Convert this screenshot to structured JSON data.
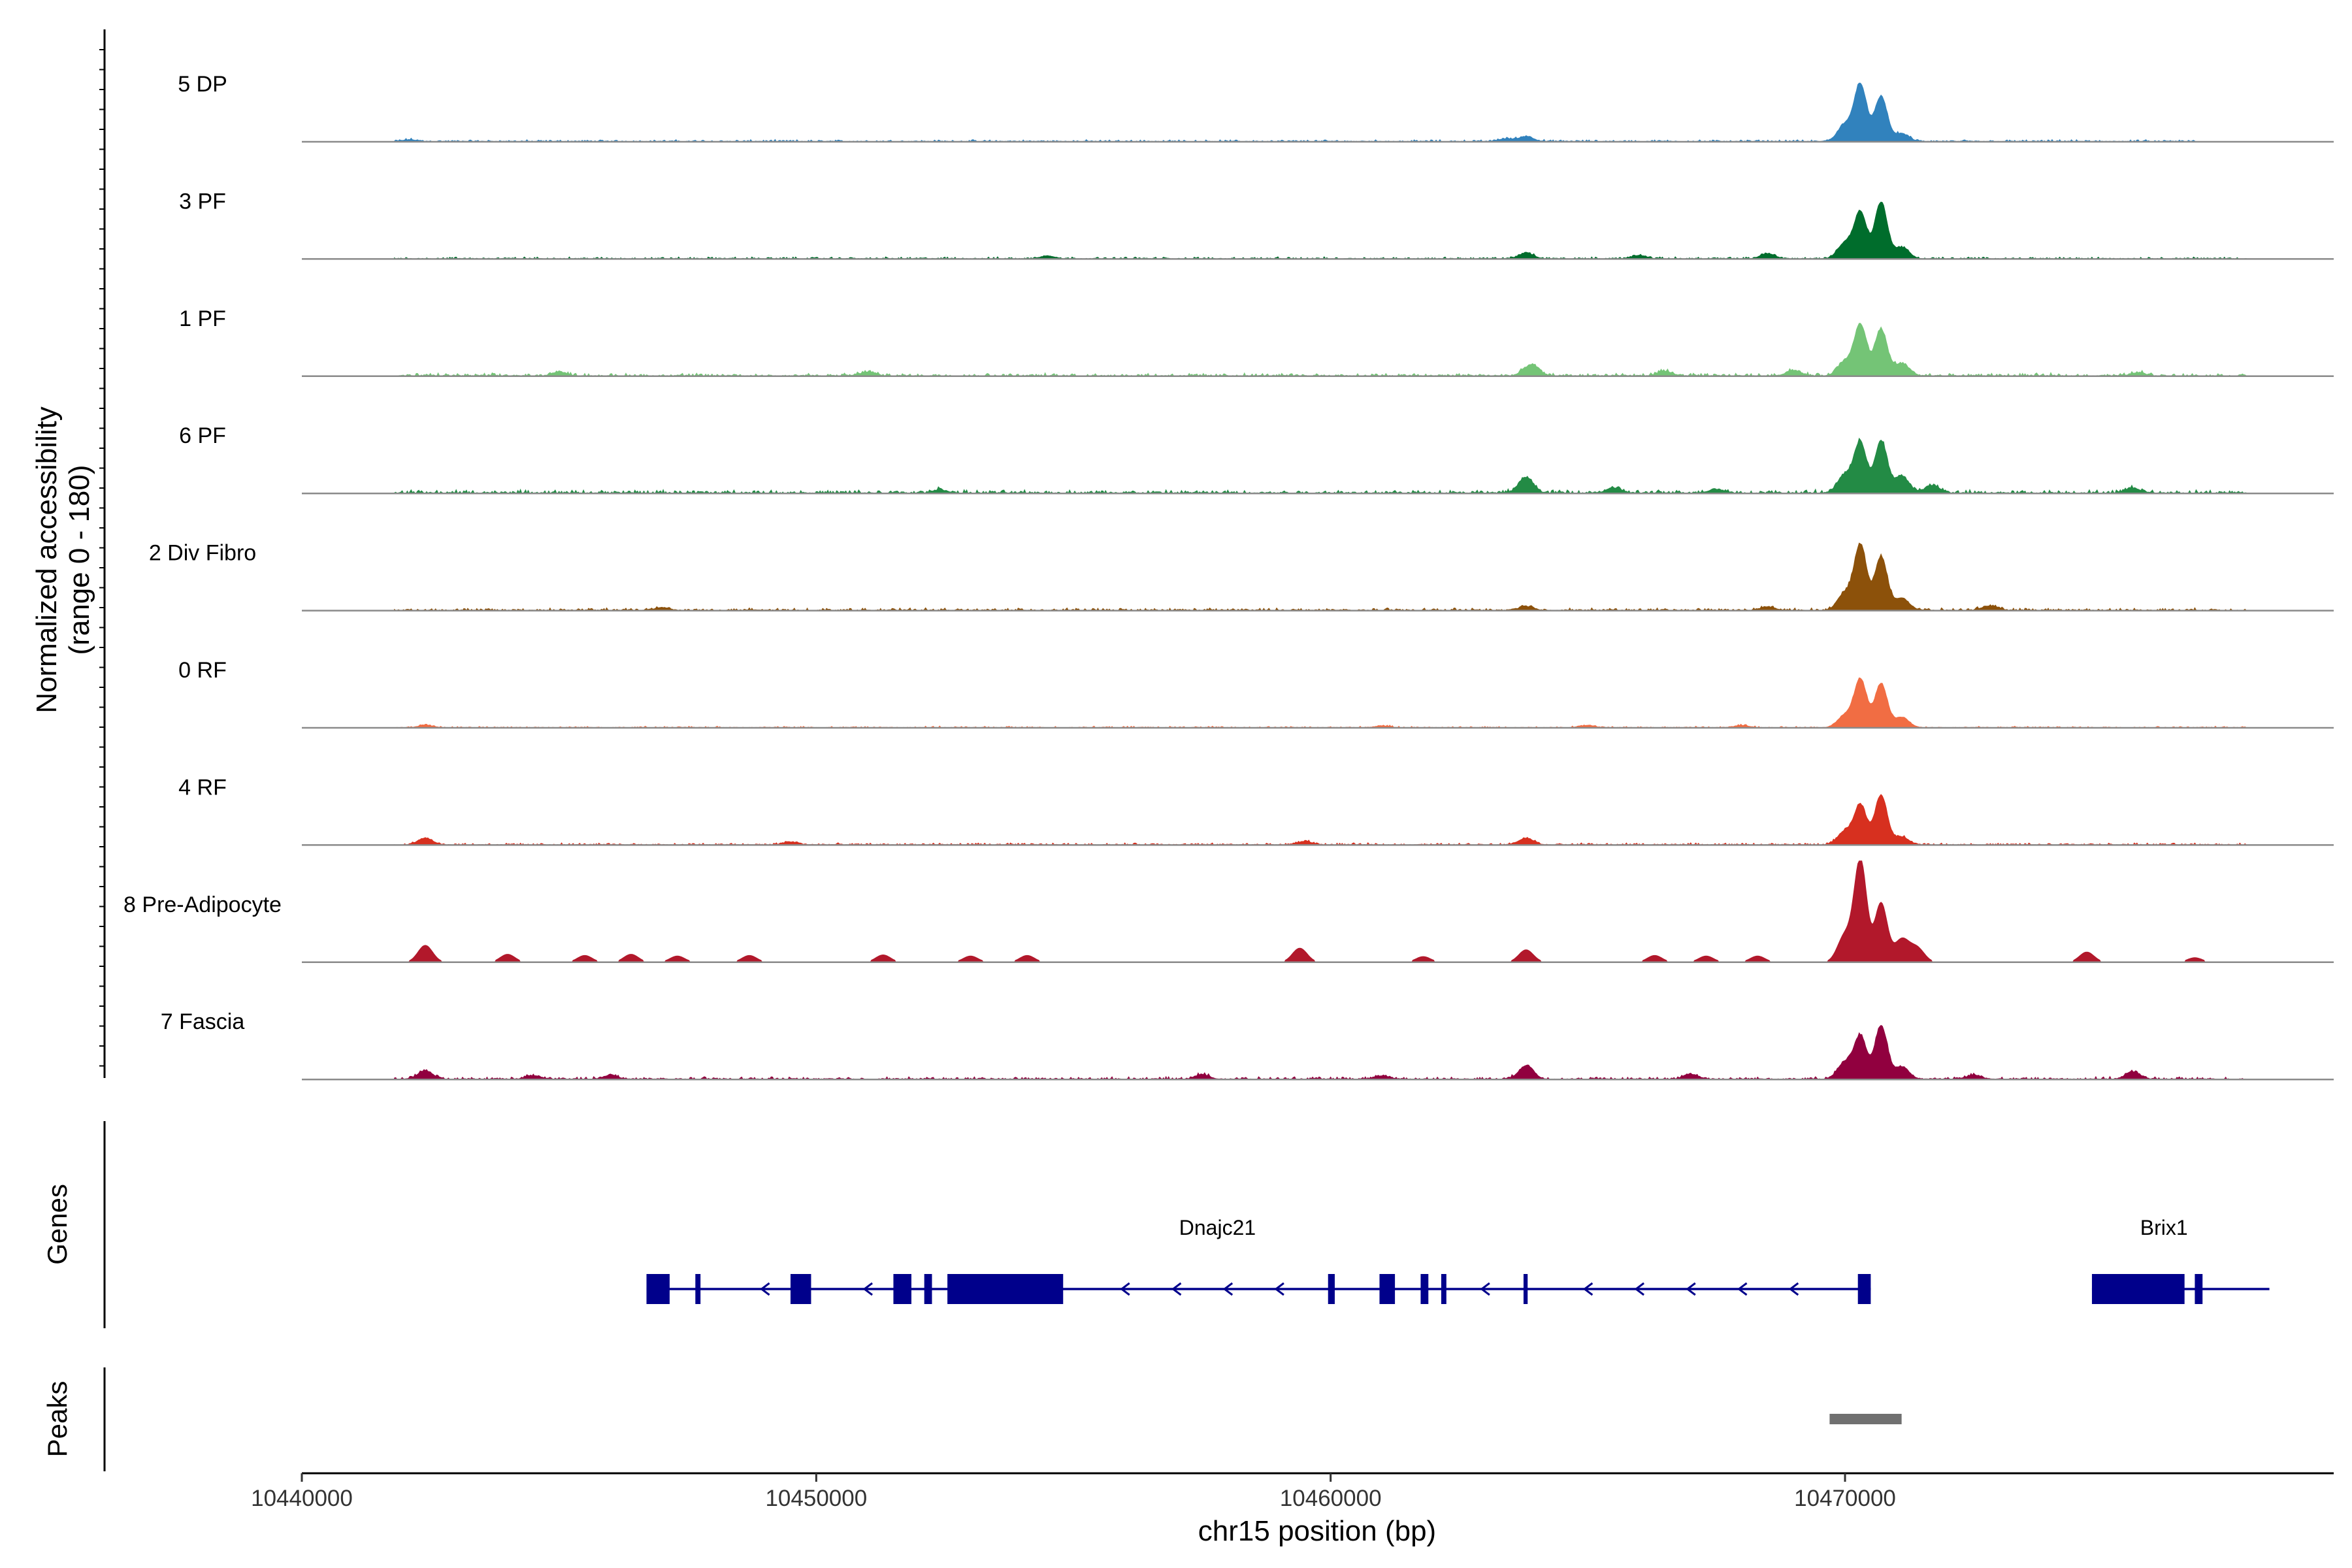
{
  "chart_data": {
    "type": "area",
    "title": "",
    "xlabel": "chr15 position (bp)",
    "ylabel": "Normalized accessibility",
    "ylabel_range": "(range 0 - 180)",
    "ylim": [
      0,
      180
    ],
    "xlim": [
      10440000,
      10479500
    ],
    "x_ticks": [
      10440000,
      10450000,
      10460000,
      10470000
    ],
    "x_tick_labels": [
      "10440000",
      "10450000",
      "10460000",
      "10470000"
    ],
    "series": [
      {
        "name": "5 DP",
        "color": "#3182BD",
        "baseline": 4,
        "x_range": [
          10441800,
          10476800
        ],
        "peaks": [
          [
            10470300,
            100
          ],
          [
            10470700,
            80
          ],
          [
            10470000,
            30
          ],
          [
            10471100,
            14
          ],
          [
            10463800,
            9
          ],
          [
            10463400,
            5
          ],
          [
            10442100,
            3
          ]
        ]
      },
      {
        "name": "3 PF",
        "color": "#006D2C",
        "baseline": 4,
        "x_range": [
          10441800,
          10477800
        ],
        "peaks": [
          [
            10470300,
            82
          ],
          [
            10470700,
            100
          ],
          [
            10470000,
            28
          ],
          [
            10471100,
            20
          ],
          [
            10463800,
            10
          ],
          [
            10468500,
            9
          ],
          [
            10466000,
            6
          ],
          [
            10454500,
            5
          ]
        ]
      },
      {
        "name": "1 PF",
        "color": "#74C476",
        "baseline": 6,
        "x_range": [
          10441800,
          10477800
        ],
        "peaks": [
          [
            10470300,
            90
          ],
          [
            10470700,
            82
          ],
          [
            10470000,
            25
          ],
          [
            10471100,
            22
          ],
          [
            10463900,
            20
          ],
          [
            10469000,
            10
          ],
          [
            10466500,
            8
          ],
          [
            10445000,
            7
          ],
          [
            10451000,
            7
          ],
          [
            10475700,
            6
          ]
        ]
      },
      {
        "name": "6 PF",
        "color": "#238B45",
        "baseline": 7,
        "x_range": [
          10441800,
          10477800
        ],
        "peaks": [
          [
            10470300,
            88
          ],
          [
            10470700,
            92
          ],
          [
            10470000,
            32
          ],
          [
            10471100,
            30
          ],
          [
            10463800,
            28
          ],
          [
            10471700,
            14
          ],
          [
            10475600,
            9
          ],
          [
            10465500,
            9
          ],
          [
            10452400,
            6
          ],
          [
            10467500,
            7
          ]
        ]
      },
      {
        "name": "2 Div Fibro",
        "color": "#8C510A",
        "baseline": 5,
        "x_range": [
          10441800,
          10477800
        ],
        "peaks": [
          [
            10470300,
            115
          ],
          [
            10470700,
            95
          ],
          [
            10470000,
            30
          ],
          [
            10471100,
            22
          ],
          [
            10463800,
            7
          ],
          [
            10472800,
            8
          ],
          [
            10468500,
            6
          ],
          [
            10447000,
            5
          ]
        ]
      },
      {
        "name": "0 RF",
        "color": "#F16D43",
        "baseline": 3,
        "x_range": [
          10441800,
          10477800
        ],
        "peaks": [
          [
            10470300,
            85
          ],
          [
            10470700,
            78
          ],
          [
            10470000,
            22
          ],
          [
            10471100,
            18
          ],
          [
            10465000,
            4
          ],
          [
            10442400,
            4
          ],
          [
            10461000,
            3
          ],
          [
            10468000,
            4
          ]
        ]
      },
      {
        "name": "4 RF",
        "color": "#D7301F",
        "baseline": 4,
        "x_range": [
          10441800,
          10477800
        ],
        "peaks": [
          [
            10470300,
            70
          ],
          [
            10470700,
            88
          ],
          [
            10470000,
            24
          ],
          [
            10471100,
            14
          ],
          [
            10442400,
            12
          ],
          [
            10463800,
            12
          ],
          [
            10459500,
            6
          ],
          [
            10449500,
            5
          ]
        ]
      },
      {
        "name": "8 Pre-Adipocyte",
        "color": "#B2182B",
        "baseline": 0,
        "x_range": [
          10441800,
          10477800
        ],
        "peaks": [
          [
            10470300,
            180
          ],
          [
            10470700,
            105
          ],
          [
            10470000,
            48
          ],
          [
            10471100,
            40
          ],
          [
            10471400,
            25
          ],
          [
            10442400,
            30
          ],
          [
            10459400,
            25
          ],
          [
            10463800,
            22
          ],
          [
            10474700,
            18
          ],
          [
            10444000,
            14
          ],
          [
            10445500,
            12
          ],
          [
            10446400,
            14
          ],
          [
            10447300,
            11
          ],
          [
            10448700,
            12
          ],
          [
            10451300,
            13
          ],
          [
            10453000,
            11
          ],
          [
            10454100,
            12
          ],
          [
            10466300,
            12
          ],
          [
            10467300,
            11
          ],
          [
            10468300,
            11
          ],
          [
            10461800,
            10
          ],
          [
            10476800,
            8
          ]
        ]
      },
      {
        "name": "7 Fascia",
        "color": "#91003F",
        "baseline": 5,
        "x_range": [
          10441800,
          10477800
        ],
        "peaks": [
          [
            10470300,
            75
          ],
          [
            10470700,
            95
          ],
          [
            10470000,
            30
          ],
          [
            10471100,
            22
          ],
          [
            10463800,
            24
          ],
          [
            10442400,
            15
          ],
          [
            10475600,
            13
          ],
          [
            10457500,
            8
          ],
          [
            10467000,
            9
          ],
          [
            10444500,
            6
          ],
          [
            10446000,
            7
          ],
          [
            10461000,
            6
          ],
          [
            10472500,
            7
          ]
        ]
      }
    ],
    "genes": [
      {
        "name": "Dnajc21",
        "start": 10446700,
        "end": 10470500,
        "strand": "-",
        "exons": [
          [
            10446700,
            10447150
          ],
          [
            10447650,
            10447750
          ],
          [
            10449500,
            10449900
          ],
          [
            10451500,
            10451850
          ],
          [
            10452100,
            10452250
          ],
          [
            10452550,
            10454800
          ],
          [
            10459950,
            10460080
          ],
          [
            10460950,
            10461250
          ],
          [
            10461750,
            10461900
          ],
          [
            10462150,
            10462250
          ],
          [
            10463750,
            10463830
          ],
          [
            10470250,
            10470500
          ]
        ]
      },
      {
        "name": "Brix1",
        "start": 10474800,
        "end": 10477600,
        "strand": "+",
        "exons": [
          [
            10474800,
            10476600
          ],
          [
            10476800,
            10476950
          ]
        ]
      }
    ],
    "peaks_track": [
      [
        10469700,
        10471100
      ]
    ],
    "panel_titles": {
      "genes": "Genes",
      "peaks": "Peaks"
    }
  }
}
